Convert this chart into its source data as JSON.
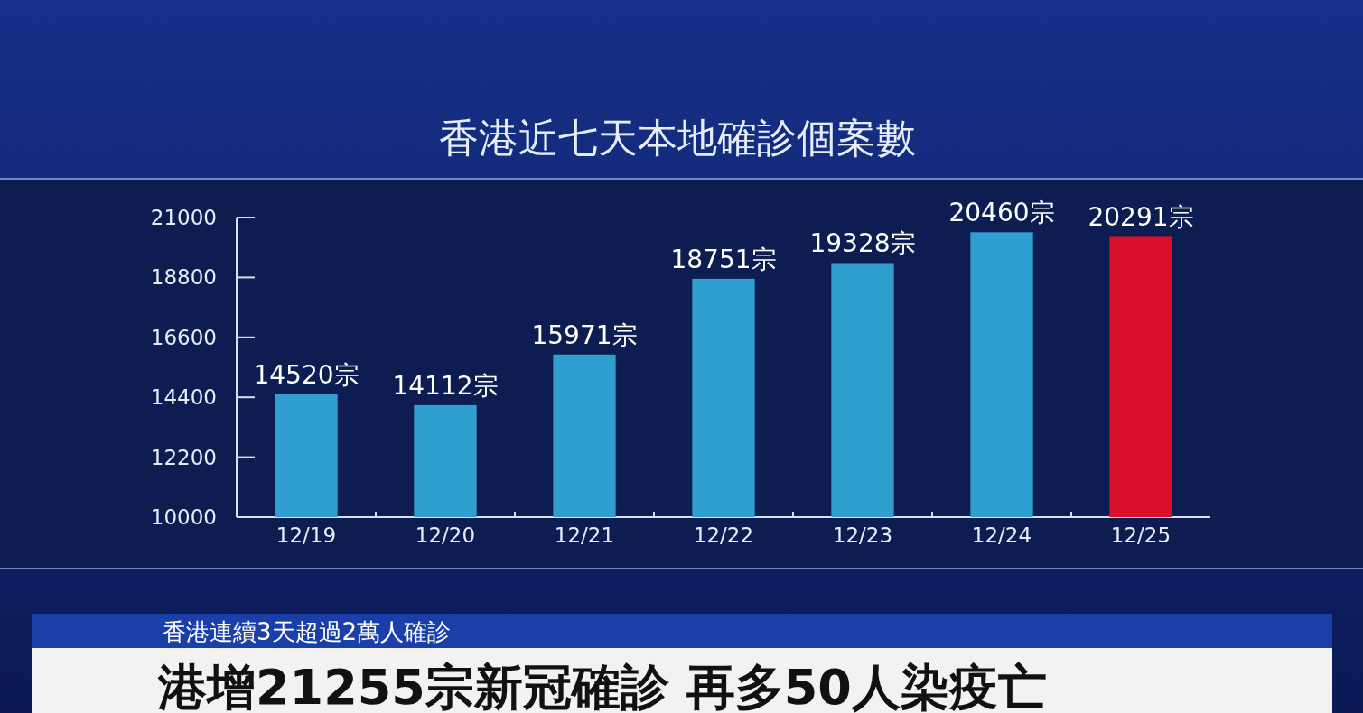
{
  "chart_data": {
    "type": "bar",
    "title": "香港近七天本地確診個案數",
    "categories": [
      "12/19",
      "12/20",
      "12/21",
      "12/22",
      "12/23",
      "12/24",
      "12/25"
    ],
    "values": [
      14520,
      14112,
      15971,
      18751,
      19328,
      20460,
      20291
    ],
    "colors": [
      "#2f9fcf",
      "#2f9fcf",
      "#2f9fcf",
      "#2f9fcf",
      "#2f9fcf",
      "#2f9fcf",
      "#d8102c"
    ],
    "value_labels": [
      "14520宗",
      "14112宗",
      "15971宗",
      "18751宗",
      "19328宗",
      "20460宗",
      "20291宗"
    ],
    "ylim": [
      10000,
      21000
    ],
    "yticks": [
      10000,
      12200,
      14400,
      16600,
      18800,
      21000
    ],
    "annotations": [
      "香港連續3天超過2萬人確診",
      "港增21255宗新冠確診 再多50人染疫亡"
    ]
  }
}
